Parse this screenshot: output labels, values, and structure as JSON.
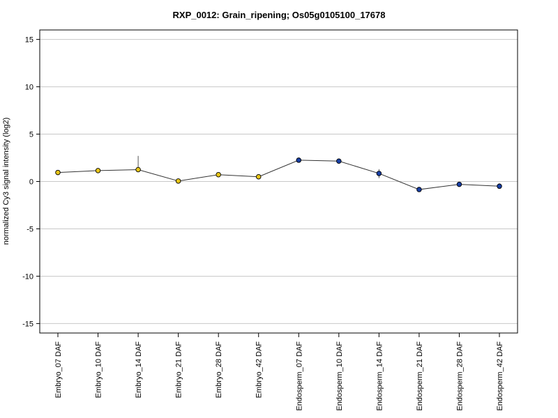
{
  "chart_data": {
    "type": "line",
    "title": "RXP_0012: Grain_ripening; Os05g0105100_17678",
    "xlabel": "",
    "ylabel": "normalized Cy3 signal intensity (log2)",
    "ylim": [
      -16,
      16
    ],
    "yticks": [
      -15,
      -10,
      -5,
      0,
      5,
      10,
      15
    ],
    "grid": "horizontal",
    "categories": [
      "Embryo_07 DAF",
      "Embryo_10 DAF",
      "Embryo_14 DAF",
      "Embryo_21 DAF",
      "Embryo_28 DAF",
      "Embryo_42 DAF",
      "Endosperm_07 DAF",
      "Endosperm_10 DAF",
      "Endosperm_14 DAF",
      "Endosperm_21 DAF",
      "Endosperm_28 DAF",
      "Endosperm_42 DAF"
    ],
    "values": [
      0.95,
      1.15,
      1.25,
      0.05,
      0.72,
      0.5,
      2.25,
      2.15,
      0.85,
      -0.85,
      -0.3,
      -0.5
    ],
    "error_low": [
      0.95,
      1.15,
      1.25,
      0.05,
      0.72,
      0.5,
      2.25,
      2.0,
      0.35,
      -0.85,
      -0.3,
      -0.75
    ],
    "error_high": [
      0.95,
      1.15,
      2.7,
      0.05,
      0.72,
      0.5,
      2.25,
      2.3,
      1.3,
      -0.85,
      -0.3,
      -0.2
    ],
    "point_colors": [
      "#e8c619",
      "#e8c619",
      "#e8c619",
      "#e8c619",
      "#e8c619",
      "#e8c619",
      "#173fa6",
      "#173fa6",
      "#173fa6",
      "#173fa6",
      "#173fa6",
      "#173fa6"
    ],
    "line_color": "#333333",
    "gridline_color": "#c8c8c8"
  }
}
